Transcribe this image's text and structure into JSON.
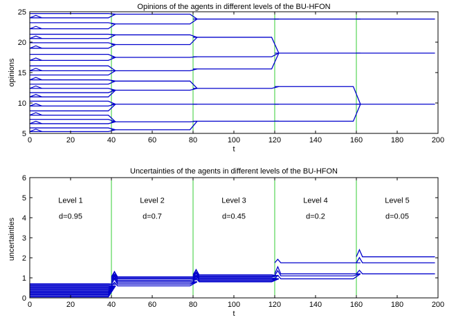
{
  "chart_data": [
    {
      "type": "line",
      "title": "Opinions of the agents in different levels of the BU-HFON",
      "xlabel": "t",
      "ylabel": "opinions",
      "xlim": [
        0,
        200
      ],
      "ylim": [
        5,
        25
      ],
      "xticks": [
        "0",
        "20",
        "40",
        "60",
        "80",
        "100",
        "120",
        "140",
        "160",
        "180",
        "200"
      ],
      "yticks": [
        "5",
        "10",
        "15",
        "20",
        "25"
      ],
      "level_boundaries": [
        40,
        80,
        120,
        160
      ],
      "series_color": "#0000cc",
      "boundary_color": "#33cc33",
      "grid": false,
      "level_stages": [
        {
          "t_start": 0,
          "t_end": 40,
          "opinions": [
            5.3,
            5.9,
            6.6,
            7.3,
            8.0,
            8.7,
            9.5,
            10.3,
            11.0,
            11.7,
            12.4,
            13.1,
            13.8,
            14.6,
            15.3,
            16.1,
            17.0,
            18.0,
            19.0,
            19.9,
            20.6,
            21.3,
            22.2,
            23.2,
            24.0,
            24.7
          ]
        },
        {
          "t_start": 40,
          "t_end": 80,
          "opinions": [
            5.6,
            6.9,
            9.8,
            12.1,
            13.6,
            15.3,
            17.5,
            19.6,
            21.2,
            23.0,
            24.6
          ]
        },
        {
          "t_start": 80,
          "t_end": 120,
          "opinions": [
            7.0,
            9.8,
            12.4,
            15.6,
            17.6,
            20.8,
            23.8
          ]
        },
        {
          "t_start": 120,
          "t_end": 160,
          "opinions": [
            7.0,
            9.8,
            12.7,
            18.2,
            23.8
          ]
        },
        {
          "t_start": 160,
          "t_end": 200,
          "opinions": [
            9.8,
            18.2,
            23.8
          ]
        }
      ]
    },
    {
      "type": "line",
      "title": "Uncertainties of the agents in different levels of the BU-HFON",
      "xlabel": "t",
      "ylabel": "uncertainties",
      "xlim": [
        0,
        200
      ],
      "ylim": [
        0,
        6
      ],
      "xticks": [
        "0",
        "20",
        "40",
        "60",
        "80",
        "100",
        "120",
        "140",
        "160",
        "180",
        "200"
      ],
      "yticks": [
        "0",
        "1",
        "2",
        "3",
        "4",
        "5",
        "6"
      ],
      "level_boundaries": [
        40,
        80,
        120,
        160
      ],
      "series_color": "#0000cc",
      "boundary_color": "#33cc33",
      "grid": false,
      "annotations": [
        {
          "level": "Level 1",
          "d": "d=0.95"
        },
        {
          "level": "Level 2",
          "d": "d=0.7"
        },
        {
          "level": "Level 3",
          "d": "d=0.45"
        },
        {
          "level": "Level 4",
          "d": "d=0.2"
        },
        {
          "level": "Level 5",
          "d": "d=0.05"
        }
      ],
      "level_stages": [
        {
          "t_start": 0,
          "t_end": 40,
          "uncertainties": [
            0.05,
            0.1,
            0.15,
            0.2,
            0.25,
            0.3,
            0.35,
            0.4,
            0.45,
            0.5,
            0.55,
            0.6,
            0.65,
            0.7
          ]
        },
        {
          "t_start": 40,
          "t_end": 80,
          "uncertainties": [
            0.6,
            0.68,
            0.75,
            0.82,
            0.88,
            0.95,
            1.0,
            1.05
          ]
        },
        {
          "t_start": 80,
          "t_end": 120,
          "uncertainties": [
            0.8,
            0.85,
            0.9,
            0.95,
            1.0,
            1.05,
            1.1,
            1.15
          ]
        },
        {
          "t_start": 120,
          "t_end": 160,
          "uncertainties": [
            0.95,
            1.1,
            1.2,
            1.75
          ]
        },
        {
          "t_start": 160,
          "t_end": 200,
          "uncertainties": [
            1.2,
            1.75,
            2.05
          ]
        }
      ]
    }
  ]
}
